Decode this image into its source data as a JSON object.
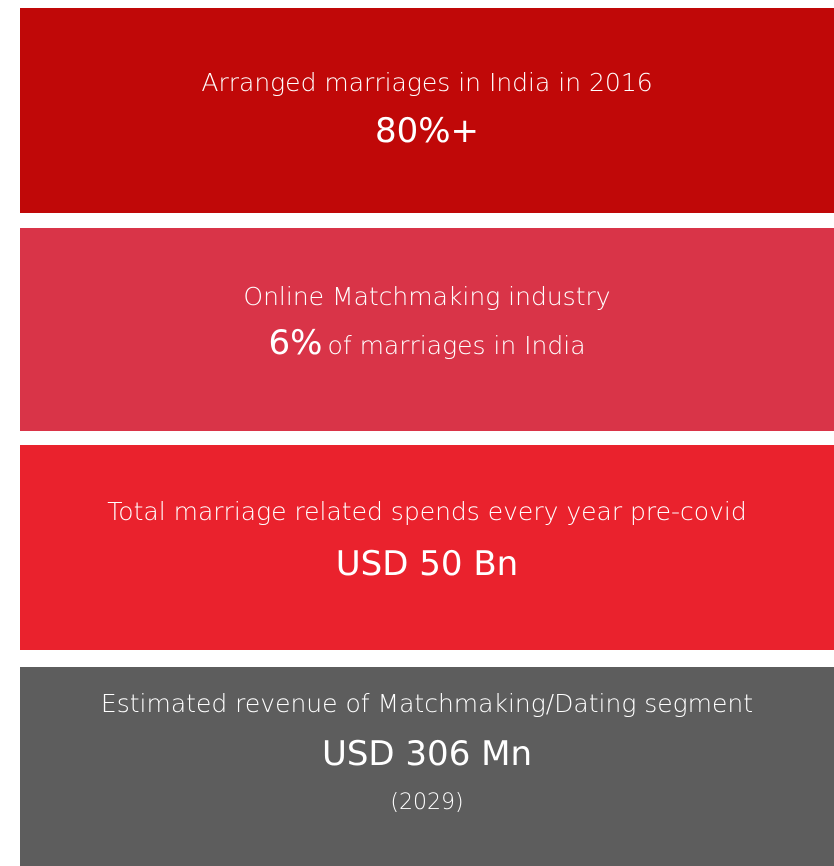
{
  "cards": [
    {
      "heading": "Arranged marriages in India in 2016",
      "value": "80%+"
    },
    {
      "heading": "Online Matchmaking industry",
      "value": "6%",
      "suffix": "of marriages in India"
    },
    {
      "heading": "Total marriage related spends every year pre-covid",
      "value": "USD 50 Bn"
    },
    {
      "heading": "Estimated revenue of Matchmaking/Dating segment",
      "value": "USD 306 Mn",
      "note": "(2029)"
    }
  ]
}
